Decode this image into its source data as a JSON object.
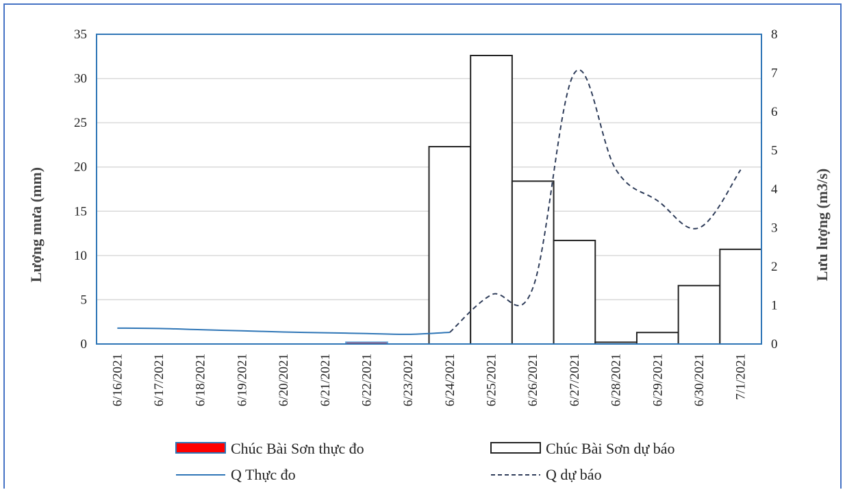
{
  "chart_data": {
    "type": "bar",
    "categories": [
      "6/16/2021",
      "6/17/2021",
      "6/18/2021",
      "6/19/2021",
      "6/20/2021",
      "6/21/2021",
      "6/22/2021",
      "6/23/2021",
      "6/24/2021",
      "6/25/2021",
      "6/26/2021",
      "6/27/2021",
      "6/28/2021",
      "6/29/2021",
      "6/30/2021",
      "7/1/2021"
    ],
    "ylabel": "Lượng mưa (mm)",
    "y2label": "Lưu lượng (m3/s)",
    "ylim": [
      0,
      35
    ],
    "y2lim": [
      0,
      8
    ],
    "yticks": [
      "0",
      "5",
      "10",
      "15",
      "20",
      "25",
      "30",
      "35"
    ],
    "y2ticks": [
      "0",
      "1",
      "2",
      "3",
      "4",
      "5",
      "6",
      "7",
      "8"
    ],
    "grid": true,
    "legend_position": "bottom",
    "series": [
      {
        "name": "Chúc Bài Sơn thực đo",
        "type": "bar",
        "axis": "left",
        "color": "#ff0000",
        "values": [
          0,
          0,
          0,
          0,
          0,
          0,
          0.2,
          0,
          0,
          0,
          0,
          0,
          0,
          0,
          0,
          0
        ]
      },
      {
        "name": "Chúc Bài Sơn dự báo",
        "type": "bar",
        "axis": "left",
        "color": "#ffffff",
        "values": [
          0,
          0,
          0,
          0,
          0,
          0,
          0,
          0,
          22.3,
          32.6,
          18.4,
          11.7,
          0.2,
          1.3,
          6.6,
          10.7
        ]
      },
      {
        "name": "Q Thực đo",
        "type": "line",
        "axis": "right",
        "color": "#2e75b6",
        "values": [
          0.41,
          0.4,
          0.37,
          0.34,
          0.31,
          0.29,
          0.27,
          0.25,
          0.3,
          null,
          null,
          null,
          null,
          null,
          null,
          null
        ]
      },
      {
        "name": "Q dự báo",
        "type": "line",
        "axis": "right",
        "color": "#2f3d5a",
        "dash": true,
        "values": [
          null,
          null,
          null,
          null,
          null,
          null,
          null,
          null,
          0.3,
          1.27,
          1.45,
          7.0,
          4.5,
          3.7,
          3.0,
          4.5
        ]
      }
    ]
  }
}
